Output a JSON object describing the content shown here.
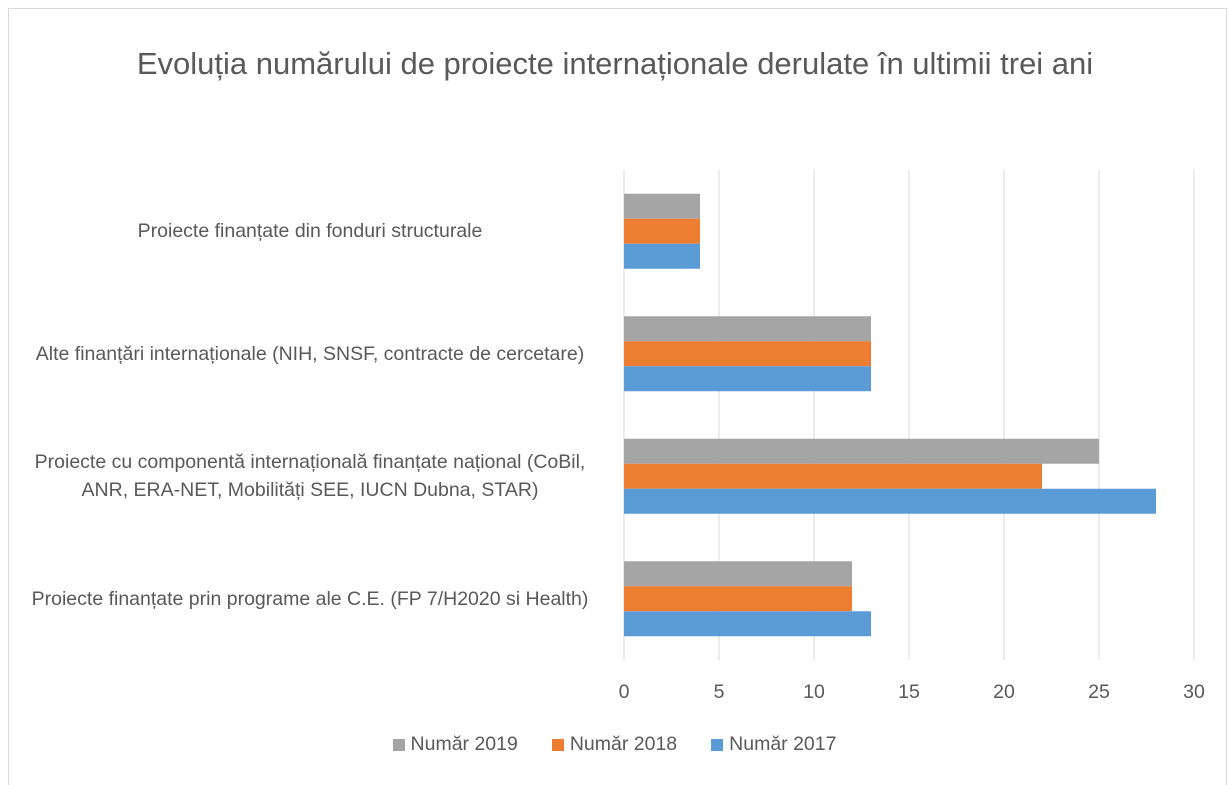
{
  "chart_data": {
    "type": "bar",
    "orientation": "horizontal",
    "title": "Evoluția numărului de proiecte internaționale derulate în ultimii trei ani",
    "categories": [
      "Proiecte finanțate din fonduri structurale",
      "Alte finanțări internaționale (NIH, SNSF, contracte de cercetare)",
      "Proiecte cu componentă internațională finanțate național (CoBil, ANR, ERA-NET, Mobilități SEE, IUCN Dubna, STAR)",
      "Proiecte finanțate prin programe ale C.E. (FP 7/H2020 si Health)"
    ],
    "series": [
      {
        "name": "Număr 2019",
        "color": "#a5a5a5",
        "values": [
          4,
          13,
          25,
          12
        ]
      },
      {
        "name": "Număr 2018",
        "color": "#ed7d31",
        "values": [
          4,
          13,
          22,
          12
        ]
      },
      {
        "name": "Număr 2017",
        "color": "#5b9bd5",
        "values": [
          4,
          13,
          28,
          13
        ]
      }
    ],
    "xlim": [
      0,
      30
    ],
    "xticks": [
      0,
      5,
      10,
      15,
      20,
      25,
      30
    ],
    "grid": true,
    "legend": "bottom"
  }
}
